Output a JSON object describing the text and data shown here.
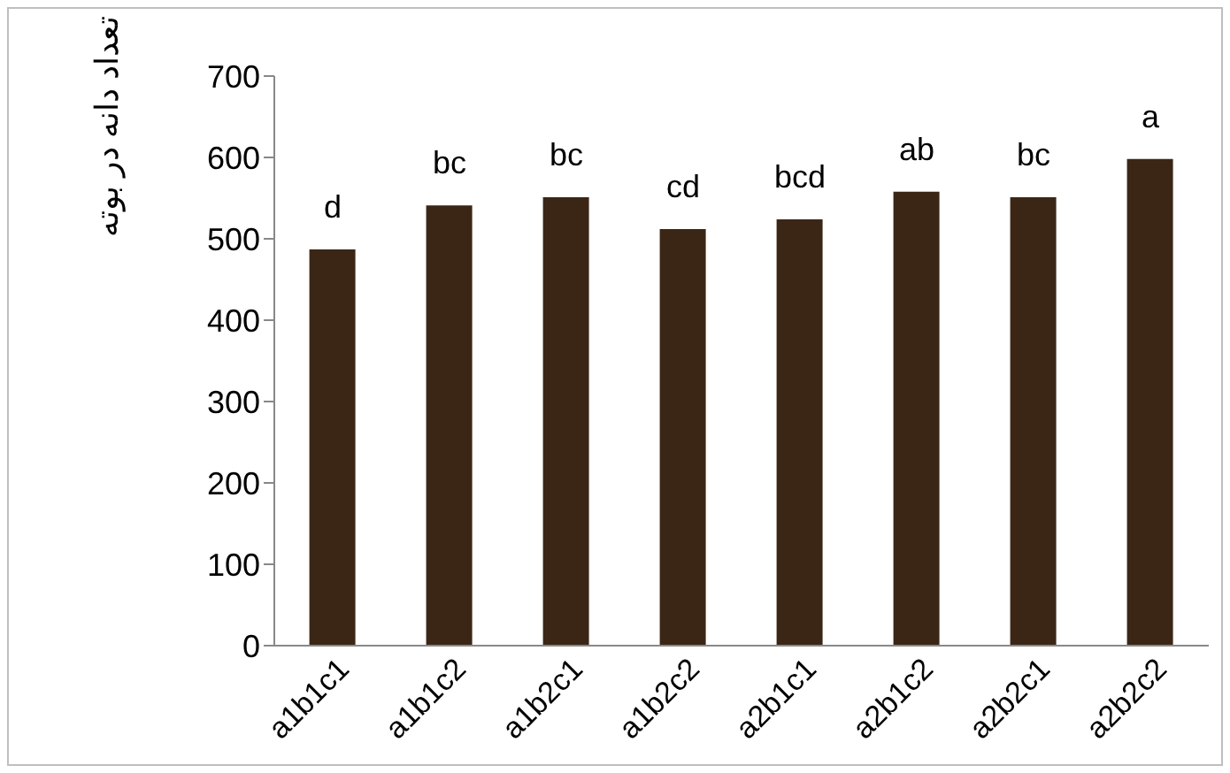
{
  "chart_data": {
    "type": "bar",
    "ylabel": "تعداد دانه در بوته",
    "categories": [
      "a1b1c1",
      "a1b1c2",
      "a1b2c1",
      "a1b2c2",
      "a2b1c1",
      "a2b1c2",
      "a2b2c1",
      "a2b2c2"
    ],
    "values": [
      487,
      541,
      551,
      512,
      524,
      558,
      551,
      598
    ],
    "color": "#3b2616",
    "ylim": [
      0,
      700
    ],
    "yticks": [
      0,
      100,
      200,
      300,
      400,
      500,
      600,
      700
    ],
    "grid": false,
    "legend": false,
    "annotations": [
      {
        "text": "d",
        "x": "a1b1c1",
        "y": 487
      },
      {
        "text": "bc",
        "x": "a1b1c2",
        "y": 541
      },
      {
        "text": "bc",
        "x": "a1b2c1",
        "y": 551
      },
      {
        "text": "cd",
        "x": "a1b2c2",
        "y": 512
      },
      {
        "text": "bcd",
        "x": "a2b1c1",
        "y": 524
      },
      {
        "text": "ab",
        "x": "a2b1c2",
        "y": 558
      },
      {
        "text": "bc",
        "x": "a2b2c1",
        "y": 551
      },
      {
        "text": "a",
        "x": "a2b2c2",
        "y": 598
      }
    ]
  }
}
